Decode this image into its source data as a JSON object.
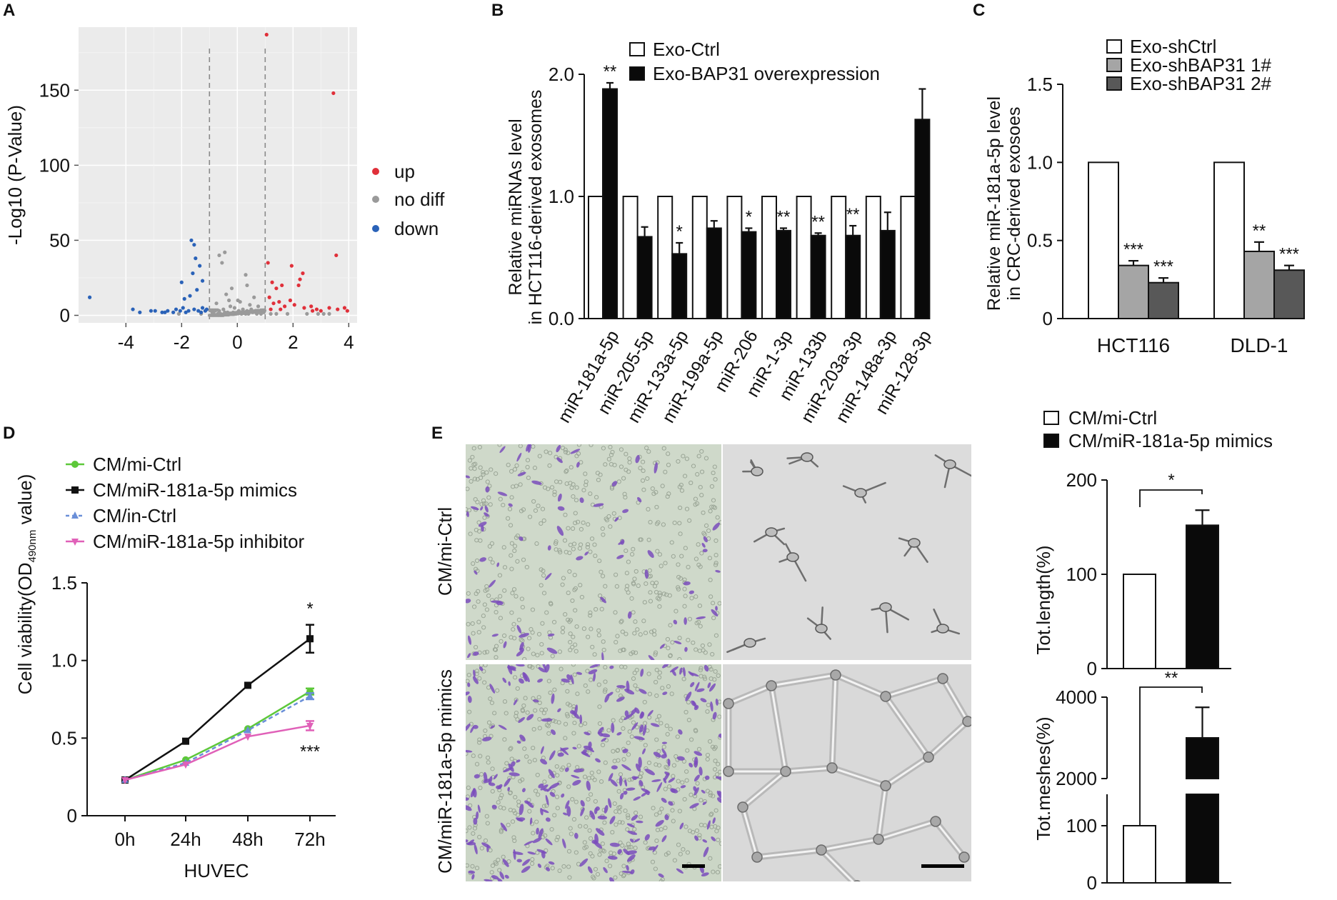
{
  "panel_labels": [
    "A",
    "B",
    "C",
    "D",
    "E"
  ],
  "colors": {
    "up": "#e0303a",
    "nodiff": "#9a9a9a",
    "down": "#2a62b8",
    "ctrl_fill": "#ffffff",
    "over_fill": "#0a0a0a",
    "sh1_fill": "#a5a5a5",
    "sh2_fill": "#585858",
    "mi_ctrl": "#5dc83a",
    "mimics": "#111111",
    "in_ctrl": "#6a8fd8",
    "inhibitor": "#e060b8",
    "stain_bg": "#cfd9ca",
    "stain_cell": "#7a4cbc",
    "tube_bg": "#dcdcdc",
    "tube_line": "#6e6e6e"
  },
  "chart_data": [
    {
      "id": "A",
      "type": "scatter",
      "xlabel": "",
      "ylabel": "-Log10 (P-Value)",
      "xlim": [
        -5.7,
        4.3
      ],
      "ylim": [
        -5,
        192
      ],
      "xticks": [
        -4,
        -2,
        0,
        2,
        4
      ],
      "yticks": [
        0,
        50,
        100,
        150
      ],
      "thresholds_x": [
        -1,
        1
      ],
      "legend": [
        "up",
        "no diff",
        "down"
      ],
      "series": [
        {
          "name": "up",
          "points": [
            [
              1.05,
              187
            ],
            [
              3.45,
              148
            ],
            [
              3.55,
              40
            ],
            [
              1.1,
              35
            ],
            [
              1.95,
              33
            ],
            [
              2.2,
              20
            ],
            [
              1.25,
              22
            ],
            [
              1.4,
              18
            ],
            [
              1.6,
              20
            ],
            [
              2.35,
              28
            ],
            [
              2.25,
              24
            ],
            [
              1.15,
              12
            ],
            [
              1.3,
              8
            ],
            [
              1.5,
              9
            ],
            [
              1.7,
              6
            ],
            [
              2.05,
              7
            ],
            [
              2.4,
              5
            ],
            [
              2.65,
              6
            ],
            [
              2.85,
              4
            ],
            [
              3.0,
              3
            ],
            [
              3.3,
              5
            ],
            [
              3.6,
              4
            ],
            [
              3.85,
              5
            ],
            [
              3.95,
              3
            ],
            [
              1.9,
              10
            ],
            [
              1.2,
              4
            ],
            [
              1.55,
              4
            ],
            [
              2.7,
              3
            ]
          ]
        },
        {
          "name": "no diff",
          "points": [
            [
              -0.45,
              42
            ],
            [
              -0.65,
              40
            ],
            [
              -0.55,
              35
            ],
            [
              0.3,
              27
            ],
            [
              0.35,
              20
            ],
            [
              -0.2,
              18
            ],
            [
              0.6,
              12
            ],
            [
              0.1,
              9
            ],
            [
              -0.3,
              10
            ],
            [
              -0.75,
              8
            ],
            [
              0.75,
              6
            ],
            [
              0.45,
              7
            ],
            [
              -0.1,
              5
            ],
            [
              0.2,
              4
            ],
            [
              -0.5,
              4
            ],
            [
              0.9,
              3
            ],
            [
              -0.9,
              2
            ],
            [
              0.0,
              2
            ],
            [
              0.55,
              2
            ],
            [
              -0.65,
              3
            ],
            [
              0.15,
              1
            ],
            [
              -0.35,
              2
            ],
            [
              0.85,
              1
            ],
            [
              -0.85,
              1
            ],
            [
              0.4,
              1
            ],
            [
              0.65,
              3
            ],
            [
              -0.15,
              2
            ],
            [
              0.25,
              2
            ],
            [
              -0.6,
              1
            ],
            [
              0.7,
              1
            ],
            [
              -0.25,
              6
            ],
            [
              0.05,
              3
            ],
            [
              0.5,
              4
            ],
            [
              -0.45,
              2
            ],
            [
              0.3,
              1
            ],
            [
              -0.8,
              3
            ],
            [
              0.95,
              2
            ],
            [
              -0.05,
              1
            ],
            [
              0.8,
              2
            ],
            [
              -0.7,
              1
            ],
            [
              0.35,
              3
            ],
            [
              1.8,
              1
            ],
            [
              2.5,
              1
            ],
            [
              3.1,
              1
            ],
            [
              1.4,
              1
            ],
            [
              -2.1,
              1
            ],
            [
              -1.3,
              1
            ],
            [
              2.9,
              1
            ],
            [
              3.3,
              1
            ],
            [
              1.2,
              1
            ],
            [
              0.02,
              10
            ],
            [
              -0.4,
              14
            ]
          ]
        },
        {
          "name": "down",
          "points": [
            [
              -1.65,
              50
            ],
            [
              -1.55,
              47
            ],
            [
              -1.5,
              38
            ],
            [
              -1.35,
              33
            ],
            [
              -1.6,
              28
            ],
            [
              -1.25,
              23
            ],
            [
              -2.0,
              22
            ],
            [
              -1.45,
              17
            ],
            [
              -1.7,
              13
            ],
            [
              -1.9,
              11
            ],
            [
              -5.3,
              12
            ],
            [
              -3.75,
              4
            ],
            [
              -3.5,
              2
            ],
            [
              -3.1,
              3
            ],
            [
              -2.95,
              3
            ],
            [
              -2.7,
              2
            ],
            [
              -2.5,
              3
            ],
            [
              -2.3,
              2
            ],
            [
              -2.2,
              4
            ],
            [
              -2.05,
              3
            ],
            [
              -1.95,
              5
            ],
            [
              -1.75,
              3
            ],
            [
              -1.55,
              4
            ],
            [
              -1.4,
              3
            ],
            [
              -1.25,
              5
            ],
            [
              -1.15,
              3
            ],
            [
              -1.1,
              4
            ],
            [
              -2.6,
              2
            ],
            [
              -1.85,
              2
            ],
            [
              -1.3,
              2
            ]
          ]
        }
      ]
    },
    {
      "id": "B",
      "type": "bar",
      "ylabel": "Relative miRNAs level\nin HCT116-derived exosomes",
      "ylim": [
        0,
        2.0
      ],
      "yticks": [
        0.0,
        1.0,
        2.0
      ],
      "ytick_labels": [
        "0.0",
        "1.0",
        "2.0"
      ],
      "categories": [
        "miR-181a-5p",
        "miR-205-5p",
        "miR-133a-5p",
        "miR-199a-5p",
        "miR-206",
        "miR-1-3p",
        "miR-133b",
        "miR-203a-3p",
        "miR-148a-3p",
        "miR-128-3p"
      ],
      "series": [
        {
          "name": "Exo-Ctrl",
          "values": [
            1,
            1,
            1,
            1,
            1,
            1,
            1,
            1,
            1,
            1
          ],
          "errors": [
            0,
            0,
            0,
            0,
            0,
            0,
            0,
            0,
            0,
            0
          ]
        },
        {
          "name": "Exo-BAP31 overexpression",
          "values": [
            1.88,
            0.67,
            0.53,
            0.74,
            0.71,
            0.72,
            0.68,
            0.68,
            0.72,
            1.63
          ],
          "errors": [
            0.05,
            0.08,
            0.09,
            0.06,
            0.03,
            0.02,
            0.02,
            0.08,
            0.15,
            0.25
          ]
        }
      ],
      "significance": [
        "**",
        "",
        "*",
        "",
        "*",
        "**",
        "**",
        "**",
        "",
        ""
      ]
    },
    {
      "id": "C",
      "type": "bar",
      "ylabel": "Relative miR-181a-5p level\nin CRC-derived exosoes",
      "ylim": [
        0,
        1.5
      ],
      "yticks": [
        0,
        0.5,
        1.0,
        1.5
      ],
      "ytick_labels": [
        "0",
        "0.5",
        "1.0",
        "1.5"
      ],
      "categories": [
        "HCT116",
        "DLD-1"
      ],
      "series": [
        {
          "name": "Exo-shCtrl",
          "values": [
            1.0,
            1.0
          ],
          "errors": [
            0,
            0
          ]
        },
        {
          "name": "Exo-shBAP31 1#",
          "values": [
            0.34,
            0.43
          ],
          "errors": [
            0.03,
            0.06
          ]
        },
        {
          "name": "Exo-shBAP31 2#",
          "values": [
            0.23,
            0.31
          ],
          "errors": [
            0.03,
            0.03
          ]
        }
      ],
      "significance": [
        [
          "",
          "***",
          "***"
        ],
        [
          "",
          "**",
          "***"
        ]
      ]
    },
    {
      "id": "D",
      "type": "line",
      "xlabel": "HUVEC",
      "ylabel": "Cell viability(OD490nm value)",
      "ylim": [
        0,
        1.5
      ],
      "yticks": [
        0,
        0.5,
        1.0,
        1.5
      ],
      "ytick_labels": [
        "0",
        "0.5",
        "1.0",
        "1.5"
      ],
      "x": [
        "0h",
        "24h",
        "48h",
        "72h"
      ],
      "series": [
        {
          "name": "CM/mi-Ctrl",
          "values": [
            0.23,
            0.36,
            0.56,
            0.8
          ],
          "errors": [
            0.01,
            0.01,
            0.01,
            0.02
          ]
        },
        {
          "name": "CM/miR-181a-5p mimics",
          "values": [
            0.23,
            0.48,
            0.84,
            1.14
          ],
          "errors": [
            0.01,
            0.01,
            0.01,
            0.09
          ]
        },
        {
          "name": "CM/in-Ctrl",
          "values": [
            0.23,
            0.34,
            0.55,
            0.77
          ],
          "errors": [
            0.01,
            0.01,
            0.01,
            0.02
          ]
        },
        {
          "name": "CM/miR-181a-5p inhibitor",
          "values": [
            0.23,
            0.33,
            0.51,
            0.58
          ],
          "errors": [
            0.01,
            0.01,
            0.01,
            0.03
          ]
        }
      ],
      "annotations": [
        "*",
        "***"
      ]
    },
    {
      "id": "E1",
      "type": "bar",
      "ylabel": "Tot.length(%)",
      "ylim": [
        0,
        200
      ],
      "yticks": [
        0,
        100,
        200
      ],
      "ytick_labels": [
        "0",
        "100",
        "200"
      ],
      "categories": [
        "CM/mi-Ctrl",
        "CM/miR-181a-5p mimics"
      ],
      "values": [
        100,
        152
      ],
      "errors": [
        0,
        16
      ],
      "significance": "*"
    },
    {
      "id": "E2",
      "type": "bar",
      "ylabel": "Tot.meshes(%)",
      "ylim": [
        0,
        4000
      ],
      "axis_break": true,
      "yticks": [
        0,
        100,
        2000,
        4000
      ],
      "ytick_labels": [
        "0",
        "100",
        "2000",
        "4000"
      ],
      "categories": [
        "CM/mi-Ctrl",
        "CM/miR-181a-5p mimics"
      ],
      "values": [
        100,
        3000
      ],
      "errors": [
        0,
        750
      ],
      "significance": "**"
    }
  ],
  "E_images": {
    "row_labels": [
      "CM/mi-Ctrl",
      "CM/miR-181a-5p mimics"
    ],
    "legend": [
      "CM/mi-Ctrl",
      "CM/miR-181a-5p mimics"
    ]
  }
}
